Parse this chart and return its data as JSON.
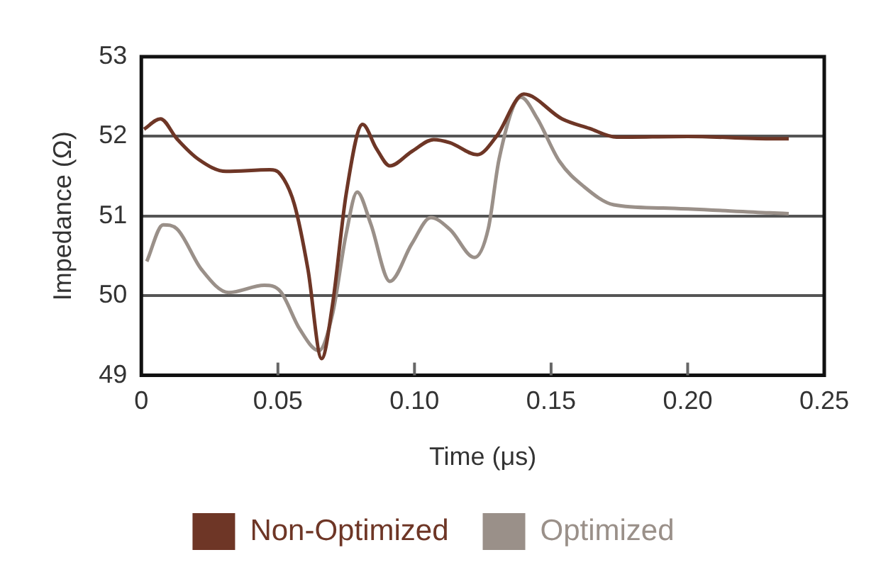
{
  "chart_data": {
    "type": "line",
    "xlabel": "Time (μs)",
    "ylabel": "Impedance (Ω)",
    "xlim": [
      0,
      0.25
    ],
    "xticks": [
      0,
      0.05,
      {
        "value": 0.1,
        "label": "0.10"
      },
      0.15,
      {
        "value": 0.2,
        "label": "0.20"
      },
      0.25
    ],
    "ylim": [
      49,
      53
    ],
    "yticks": [
      49,
      50,
      51,
      52,
      53
    ],
    "grid": "y",
    "legend": "bottom",
    "series": [
      {
        "name": "Non-Optimized",
        "color": "#6e3626",
        "x": [
          0.001,
          0.007,
          0.013,
          0.021,
          0.031,
          0.047,
          0.051,
          0.056,
          0.061,
          0.066,
          0.07,
          0.075,
          0.081,
          0.086,
          0.091,
          0.099,
          0.107,
          0.113,
          0.123,
          0.13,
          0.14,
          0.154,
          0.164,
          0.174,
          0.2,
          0.23,
          0.237
        ],
        "values": [
          52.09,
          52.22,
          51.97,
          51.71,
          51.56,
          51.58,
          51.52,
          51.15,
          50.33,
          49.21,
          49.89,
          51.28,
          52.15,
          51.85,
          51.63,
          51.81,
          51.96,
          51.92,
          51.77,
          52.0,
          52.53,
          52.22,
          52.1,
          51.99,
          52.0,
          51.97,
          51.97
        ]
      },
      {
        "name": "Optimized",
        "color": "#9a9089",
        "x": [
          0.002,
          0.008,
          0.013,
          0.022,
          0.032,
          0.045,
          0.051,
          0.058,
          0.065,
          0.07,
          0.075,
          0.079,
          0.084,
          0.091,
          0.099,
          0.106,
          0.113,
          0.122,
          0.127,
          0.131,
          0.139,
          0.145,
          0.153,
          0.162,
          0.173,
          0.191,
          0.23,
          0.237
        ],
        "values": [
          50.43,
          50.89,
          50.84,
          50.33,
          50.04,
          50.13,
          50.05,
          49.58,
          49.31,
          49.77,
          50.78,
          51.3,
          50.9,
          50.18,
          50.65,
          50.98,
          50.83,
          50.48,
          50.84,
          51.72,
          52.49,
          52.22,
          51.69,
          51.37,
          51.14,
          51.1,
          51.04,
          51.03
        ]
      }
    ]
  }
}
